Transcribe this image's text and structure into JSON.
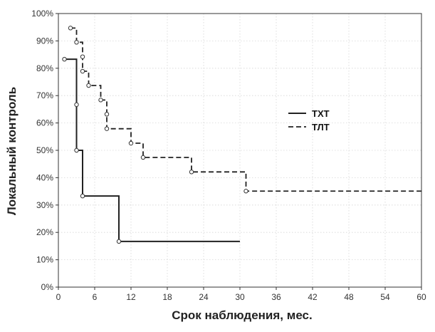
{
  "chart_data": {
    "type": "line",
    "xlabel": "Срок наблюдения, мес.",
    "ylabel": "Локальный контроль",
    "xlim": [
      0,
      60
    ],
    "ylim": [
      0,
      100
    ],
    "xticks": [
      0,
      6,
      12,
      18,
      24,
      30,
      36,
      42,
      48,
      54,
      60
    ],
    "yticks": [
      0,
      10,
      20,
      30,
      40,
      50,
      60,
      70,
      80,
      90,
      100
    ],
    "ytick_suffix": "%",
    "grid": true,
    "legend_position": "right-middle",
    "series": [
      {
        "name": "ТХТ",
        "style": "solid",
        "color": "#222222",
        "steps": [
          [
            1,
            83.3
          ],
          [
            3,
            66.7
          ],
          [
            3,
            50
          ],
          [
            4,
            33.3
          ],
          [
            10,
            16.7
          ],
          [
            30,
            16.7
          ]
        ],
        "censored": [
          [
            1,
            83.3
          ],
          [
            3,
            66.7
          ],
          [
            3,
            50
          ],
          [
            4,
            33.3
          ],
          [
            10,
            16.7
          ]
        ]
      },
      {
        "name": "ТЛТ",
        "style": "dashed",
        "color": "#222222",
        "steps": [
          [
            2,
            94.7
          ],
          [
            3,
            89.5
          ],
          [
            4,
            84.2
          ],
          [
            4,
            78.9
          ],
          [
            5,
            73.7
          ],
          [
            7,
            68.4
          ],
          [
            8,
            63.2
          ],
          [
            8,
            57.9
          ],
          [
            12,
            52.6
          ],
          [
            14,
            47.4
          ],
          [
            22,
            42.1
          ],
          [
            31,
            35.1
          ],
          [
            60,
            35.1
          ]
        ],
        "censored": [
          [
            2,
            94.7
          ],
          [
            3,
            89.5
          ],
          [
            4,
            84.2
          ],
          [
            4,
            78.9
          ],
          [
            5,
            73.7
          ],
          [
            7,
            68.4
          ],
          [
            8,
            63.2
          ],
          [
            8,
            57.9
          ],
          [
            12,
            52.6
          ],
          [
            14,
            47.4
          ],
          [
            22,
            42.1
          ],
          [
            31,
            35.1
          ]
        ]
      }
    ]
  }
}
